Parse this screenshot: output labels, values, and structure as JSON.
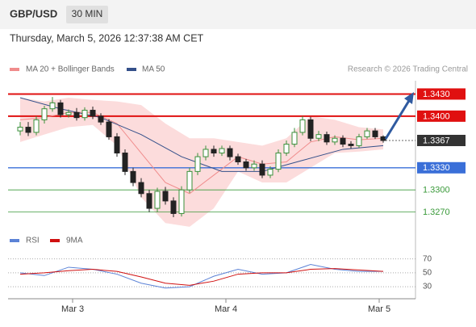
{
  "header": {
    "symbol": "GBP/USD",
    "interval": "30 MIN",
    "timestamp": "Thursday, March 5, 2026 12:37:38 AM CET",
    "credit": "Research © 2026 Trading Central"
  },
  "chart_data": [
    {
      "type": "candlestick",
      "xlim": [
        -1.5,
        49
      ],
      "ylim": [
        1.324,
        1.3448
      ],
      "xticks": [
        {
          "value": 6.5,
          "label": "Mar 3"
        },
        {
          "value": 25.5,
          "label": "Mar 4"
        },
        {
          "value": 44.5,
          "label": "Mar 5"
        }
      ],
      "up_color": "#3a8f3a",
      "down_color": "#222222",
      "open": [
        1.338,
        1.3385,
        1.3378,
        1.3395,
        1.341,
        1.3418,
        1.3402,
        1.3405,
        1.3398,
        1.3408,
        1.34,
        1.3392,
        1.3372,
        1.335,
        1.3325,
        1.331,
        1.3295,
        1.3275,
        1.3298,
        1.3285,
        1.3268,
        1.33,
        1.3325,
        1.3345,
        1.3355,
        1.335,
        1.3356,
        1.3345,
        1.3338,
        1.333,
        1.3335,
        1.332,
        1.3328,
        1.335,
        1.3362,
        1.3378,
        1.3395,
        1.337,
        1.3375,
        1.3365,
        1.337,
        1.3362,
        1.336,
        1.3372,
        1.338,
        1.3372
      ],
      "high": [
        1.3392,
        1.3392,
        1.34,
        1.3414,
        1.3426,
        1.3422,
        1.3409,
        1.3411,
        1.3412,
        1.3413,
        1.3404,
        1.3396,
        1.3377,
        1.3355,
        1.333,
        1.3316,
        1.33,
        1.3303,
        1.3304,
        1.329,
        1.3305,
        1.333,
        1.335,
        1.336,
        1.336,
        1.336,
        1.336,
        1.3349,
        1.3342,
        1.334,
        1.334,
        1.3332,
        1.3355,
        1.3367,
        1.3384,
        1.34,
        1.3399,
        1.338,
        1.3379,
        1.3374,
        1.3374,
        1.3366,
        1.3376,
        1.3384,
        1.3384,
        1.3374
      ],
      "low": [
        1.3374,
        1.3373,
        1.3374,
        1.339,
        1.3406,
        1.3398,
        1.3398,
        1.3394,
        1.3394,
        1.3396,
        1.3388,
        1.3368,
        1.3345,
        1.332,
        1.3305,
        1.329,
        1.327,
        1.327,
        1.328,
        1.3263,
        1.3264,
        1.3296,
        1.332,
        1.334,
        1.3345,
        1.3346,
        1.334,
        1.3334,
        1.3326,
        1.3326,
        1.3316,
        1.3316,
        1.3324,
        1.3346,
        1.3358,
        1.3374,
        1.3366,
        1.3366,
        1.3361,
        1.3361,
        1.3358,
        1.3356,
        1.3357,
        1.3369,
        1.3369,
        1.3364
      ],
      "close": [
        1.3385,
        1.3378,
        1.3395,
        1.341,
        1.3418,
        1.3402,
        1.3405,
        1.3398,
        1.3408,
        1.34,
        1.3392,
        1.3372,
        1.335,
        1.3325,
        1.331,
        1.3295,
        1.3275,
        1.3298,
        1.3285,
        1.3268,
        1.33,
        1.3325,
        1.3345,
        1.3355,
        1.335,
        1.3356,
        1.3345,
        1.3338,
        1.333,
        1.3335,
        1.332,
        1.3328,
        1.335,
        1.3362,
        1.3378,
        1.3395,
        1.337,
        1.3375,
        1.3365,
        1.337,
        1.3362,
        1.336,
        1.3372,
        1.338,
        1.3372,
        1.3367
      ],
      "series": [
        {
          "name": "MA 20 + Bollinger Bands",
          "color": "#f08c8c",
          "band_color": "#fbd3d3",
          "x": [
            0,
            3,
            6,
            9,
            12,
            15,
            18,
            21,
            24,
            27,
            30,
            33,
            36,
            39,
            42,
            45
          ],
          "values": [
            1.3395,
            1.3398,
            1.3405,
            1.3405,
            1.339,
            1.335,
            1.331,
            1.3295,
            1.332,
            1.3345,
            1.3335,
            1.3338,
            1.3365,
            1.3372,
            1.3368,
            1.337
          ],
          "upper": [
            1.3425,
            1.342,
            1.3425,
            1.3422,
            1.342,
            1.3415,
            1.339,
            1.337,
            1.337,
            1.3365,
            1.336,
            1.337,
            1.34,
            1.3395,
            1.3385,
            1.3382
          ],
          "lower": [
            1.3365,
            1.3375,
            1.3385,
            1.3388,
            1.336,
            1.329,
            1.3255,
            1.325,
            1.3275,
            1.3325,
            1.331,
            1.331,
            1.333,
            1.335,
            1.3352,
            1.3355
          ]
        },
        {
          "name": "MA 50",
          "color": "#34508a",
          "x": [
            0,
            5,
            10,
            15,
            20,
            25,
            30,
            35,
            40,
            45
          ],
          "values": [
            1.3425,
            1.341,
            1.3398,
            1.3375,
            1.3345,
            1.3325,
            1.3325,
            1.334,
            1.3355,
            1.336
          ]
        }
      ],
      "levels": [
        {
          "value": 1.343,
          "label": "1.3430",
          "color": "#e01010",
          "style": "box"
        },
        {
          "value": 1.34,
          "label": "1.3400",
          "color": "#e01010",
          "style": "box"
        },
        {
          "value": 1.3367,
          "label": "1.3367",
          "color": "#333333",
          "style": "current"
        },
        {
          "value": 1.333,
          "label": "1.3330",
          "color": "#3a6fd8",
          "style": "box"
        },
        {
          "value": 1.33,
          "label": "1.3300",
          "color": "#3a9a3a",
          "style": "text"
        },
        {
          "value": 1.327,
          "label": "1.3270",
          "color": "#3a9a3a",
          "style": "text"
        }
      ]
    },
    {
      "type": "line",
      "xlim": [
        -1.5,
        49
      ],
      "ylim": [
        15,
        80
      ],
      "yticks": [
        70,
        50,
        30
      ],
      "x": [
        0,
        3,
        6,
        9,
        12,
        15,
        18,
        21,
        24,
        27,
        30,
        33,
        36,
        39,
        42,
        45
      ],
      "series": [
        {
          "name": "RSI",
          "color": "#5b82d6",
          "values": [
            50,
            46,
            58,
            55,
            48,
            35,
            28,
            30,
            45,
            55,
            48,
            50,
            62,
            55,
            52,
            52
          ]
        },
        {
          "name": "9MA",
          "color": "#d01010",
          "values": [
            48,
            50,
            53,
            55,
            52,
            44,
            35,
            32,
            38,
            48,
            50,
            50,
            55,
            56,
            54,
            52
          ]
        }
      ]
    }
  ]
}
